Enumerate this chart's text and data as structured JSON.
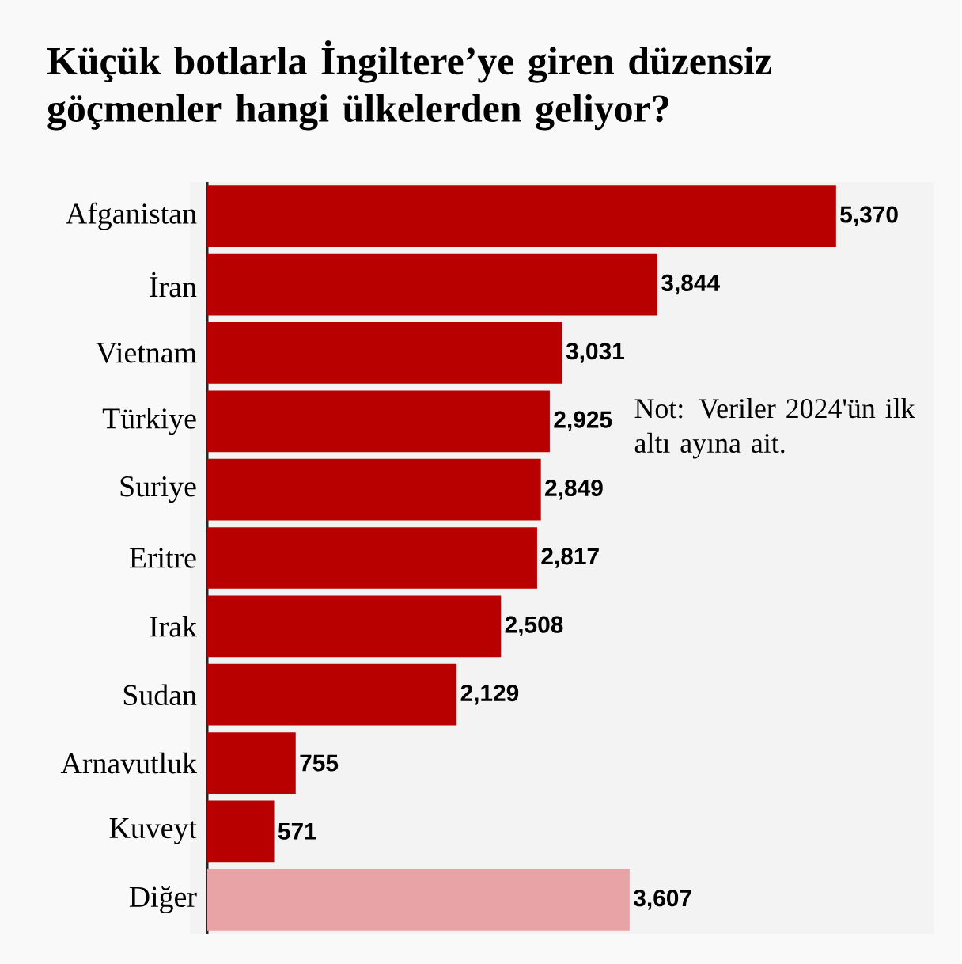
{
  "chart_data": {
    "type": "bar",
    "orientation": "horizontal",
    "title": "Küçük botlarla İngiltere’ye giren düzensiz göçmenler hangi ülkelerden geliyor?",
    "categories": [
      "Afganistan",
      "İran",
      "Vietnam",
      "Türkiye",
      "Suriye",
      "Eritre",
      "Irak",
      "Sudan",
      "Arnavutluk",
      "Kuveyt",
      "Diğer"
    ],
    "values": [
      5370,
      3844,
      3031,
      2925,
      2849,
      2817,
      2508,
      2129,
      755,
      571,
      3607
    ],
    "value_labels": [
      "5,370",
      "3,844",
      "3,031",
      "2,925",
      "2,849",
      "2,817",
      "2,508",
      "2,129",
      "755",
      "571",
      "3,607"
    ],
    "colors": [
      "#b80000",
      "#b80000",
      "#b80000",
      "#b80000",
      "#b80000",
      "#b80000",
      "#b80000",
      "#b80000",
      "#b80000",
      "#b80000",
      "#e8a3a6"
    ],
    "annotations": [
      "Not: Veriler 2024'ün ilk altı ayına ait."
    ]
  }
}
